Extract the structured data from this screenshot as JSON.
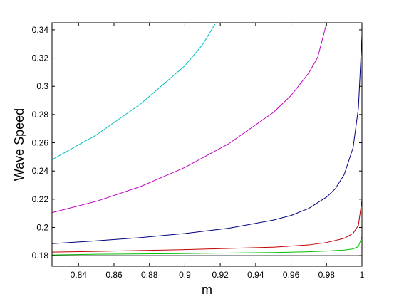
{
  "chart_data": {
    "type": "line",
    "title": "",
    "xlabel": "m",
    "ylabel": "Wave Speed",
    "xlim": [
      0.825,
      1.0
    ],
    "ylim": [
      0.1725,
      0.345
    ],
    "xticks": [
      0.84,
      0.86,
      0.88,
      0.9,
      0.92,
      0.94,
      0.96,
      0.98,
      1
    ],
    "xtick_labels": [
      "0.84",
      "0.86",
      "0.88",
      "0.9",
      "0.92",
      "0.94",
      "0.96",
      "0.98",
      "1"
    ],
    "yticks": [
      0.18,
      0.2,
      0.22,
      0.24,
      0.26,
      0.28,
      0.3,
      0.32,
      0.34
    ],
    "ytick_labels": [
      "0.18",
      "0.2",
      "0.22",
      "0.24",
      "0.26",
      "0.28",
      "0.3",
      "0.32",
      "0.34"
    ],
    "grid": false,
    "legend": "none",
    "series": [
      {
        "color": "#000000",
        "x": [
          0.825,
          1.0
        ],
        "y": [
          0.18,
          0.18
        ]
      },
      {
        "color": "#00c000",
        "x": [
          0.825,
          0.85,
          0.9,
          0.95,
          0.97,
          0.98,
          0.99,
          0.995,
          0.998,
          1.0
        ],
        "y": [
          0.1805,
          0.181,
          0.1815,
          0.1822,
          0.1828,
          0.1833,
          0.184,
          0.1848,
          0.1865,
          0.1935
        ]
      },
      {
        "color": "#c00000",
        "x": [
          0.825,
          0.85,
          0.9,
          0.95,
          0.97,
          0.98,
          0.99,
          0.995,
          0.998,
          1.0
        ],
        "y": [
          0.1825,
          0.183,
          0.1843,
          0.186,
          0.1876,
          0.1893,
          0.1923,
          0.1958,
          0.2015,
          0.2195
        ]
      },
      {
        "color": "#00007f",
        "x": [
          0.825,
          0.85,
          0.875,
          0.9,
          0.925,
          0.95,
          0.96,
          0.97,
          0.98,
          0.985,
          0.99,
          0.995,
          0.998,
          1.0
        ],
        "y": [
          0.1885,
          0.1905,
          0.1928,
          0.1957,
          0.1995,
          0.2052,
          0.2085,
          0.2135,
          0.2215,
          0.2275,
          0.2375,
          0.2565,
          0.2845,
          0.336
        ]
      },
      {
        "color": "#c000c0",
        "x": [
          0.825,
          0.85,
          0.875,
          0.9,
          0.925,
          0.95,
          0.96,
          0.97,
          0.975,
          0.98
        ],
        "y": [
          0.2105,
          0.2185,
          0.229,
          0.2425,
          0.2595,
          0.2815,
          0.2935,
          0.3095,
          0.3205,
          0.3445
        ]
      },
      {
        "color": "#00c0c0",
        "x": [
          0.825,
          0.85,
          0.875,
          0.9,
          0.91,
          0.917
        ],
        "y": [
          0.248,
          0.2655,
          0.2875,
          0.3145,
          0.3295,
          0.344
        ]
      }
    ]
  }
}
